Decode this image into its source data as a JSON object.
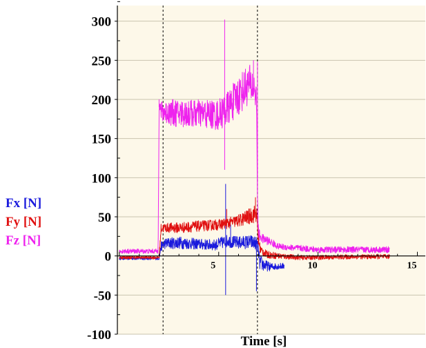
{
  "chart_data": {
    "type": "line",
    "title": "",
    "xlabel": "Time [s]",
    "ylabel": "",
    "xlim": [
      -0.1,
      15.4
    ],
    "ylim": [
      -100,
      320
    ],
    "x_ticks": [
      5,
      10,
      15
    ],
    "y_ticks": [
      -100,
      -50,
      0,
      50,
      100,
      150,
      200,
      250,
      300
    ],
    "x_tick_labels": [
      "5",
      "10",
      "15"
    ],
    "y_tick_labels": [
      "-100",
      "-50",
      "0",
      "50",
      "100",
      "150",
      "200",
      "250",
      "300"
    ],
    "grid": "horizontal",
    "background": "#fdf8e9",
    "vertical_markers": [
      2.2,
      6.95
    ],
    "legend_position": "left",
    "series": [
      {
        "name": "Fx [N]",
        "color": "#1a1adc",
        "x": [
          0,
          1.9,
          2.0,
          2.1,
          2.3,
          3.0,
          4.0,
          4.8,
          5.3,
          5.5,
          5.6,
          6.0,
          6.6,
          6.9,
          7.0,
          7.05,
          7.3,
          7.6,
          8.0,
          8.3
        ],
        "y": [
          -3,
          -3,
          -3,
          12,
          16,
          17,
          15,
          14,
          18,
          20,
          18,
          17,
          18,
          16,
          8,
          -8,
          -12,
          -14,
          -13,
          -13
        ],
        "noise": [
          2,
          2,
          2,
          6,
          7,
          8,
          7,
          7,
          8,
          8,
          8,
          8,
          9,
          9,
          10,
          10,
          8,
          5,
          4,
          4
        ],
        "spikes": [
          [
            5.35,
            92
          ],
          [
            5.35,
            -50
          ],
          [
            5.6,
            40
          ],
          [
            6.9,
            -45
          ]
        ]
      },
      {
        "name": "Fy [N]",
        "color": "#e01010",
        "x": [
          0,
          1.9,
          2.0,
          2.1,
          2.3,
          3.0,
          4.0,
          5.0,
          5.5,
          6.0,
          6.5,
          6.9,
          7.0,
          7.1,
          7.4,
          8.0,
          9.0,
          10.0,
          12.0,
          13.6
        ],
        "y": [
          -2,
          -2,
          -2,
          35,
          36,
          36,
          38,
          40,
          42,
          45,
          50,
          55,
          20,
          8,
          2,
          0,
          -2,
          -2,
          -1,
          -1
        ],
        "noise": [
          2,
          2,
          2,
          6,
          6,
          7,
          7,
          7,
          7,
          8,
          10,
          12,
          10,
          6,
          5,
          4,
          3,
          3,
          3,
          3
        ],
        "spikes": [
          [
            6.85,
            75
          ],
          [
            5.4,
            60
          ]
        ]
      },
      {
        "name": "Fz [N]",
        "color": "#ee22ee",
        "x": [
          0,
          1.9,
          1.95,
          2.0,
          2.1,
          2.3,
          3.0,
          4.0,
          5.0,
          5.5,
          6.0,
          6.5,
          6.8,
          6.9,
          6.95,
          7.0,
          7.2,
          7.6,
          8.0,
          9.0,
          10.0,
          12.0,
          13.6
        ],
        "y": [
          6,
          6,
          6,
          190,
          185,
          184,
          182,
          182,
          180,
          190,
          205,
          220,
          215,
          200,
          80,
          28,
          22,
          18,
          12,
          10,
          8,
          8,
          8
        ],
        "noise": [
          3,
          3,
          3,
          8,
          12,
          16,
          18,
          18,
          20,
          22,
          26,
          26,
          22,
          15,
          10,
          8,
          6,
          5,
          4,
          4,
          4,
          4,
          4
        ],
        "spikes": [
          [
            5.3,
            302
          ],
          [
            5.3,
            110
          ],
          [
            6.75,
            250
          ],
          [
            6.95,
            248
          ],
          [
            2.0,
            200
          ]
        ]
      }
    ]
  }
}
